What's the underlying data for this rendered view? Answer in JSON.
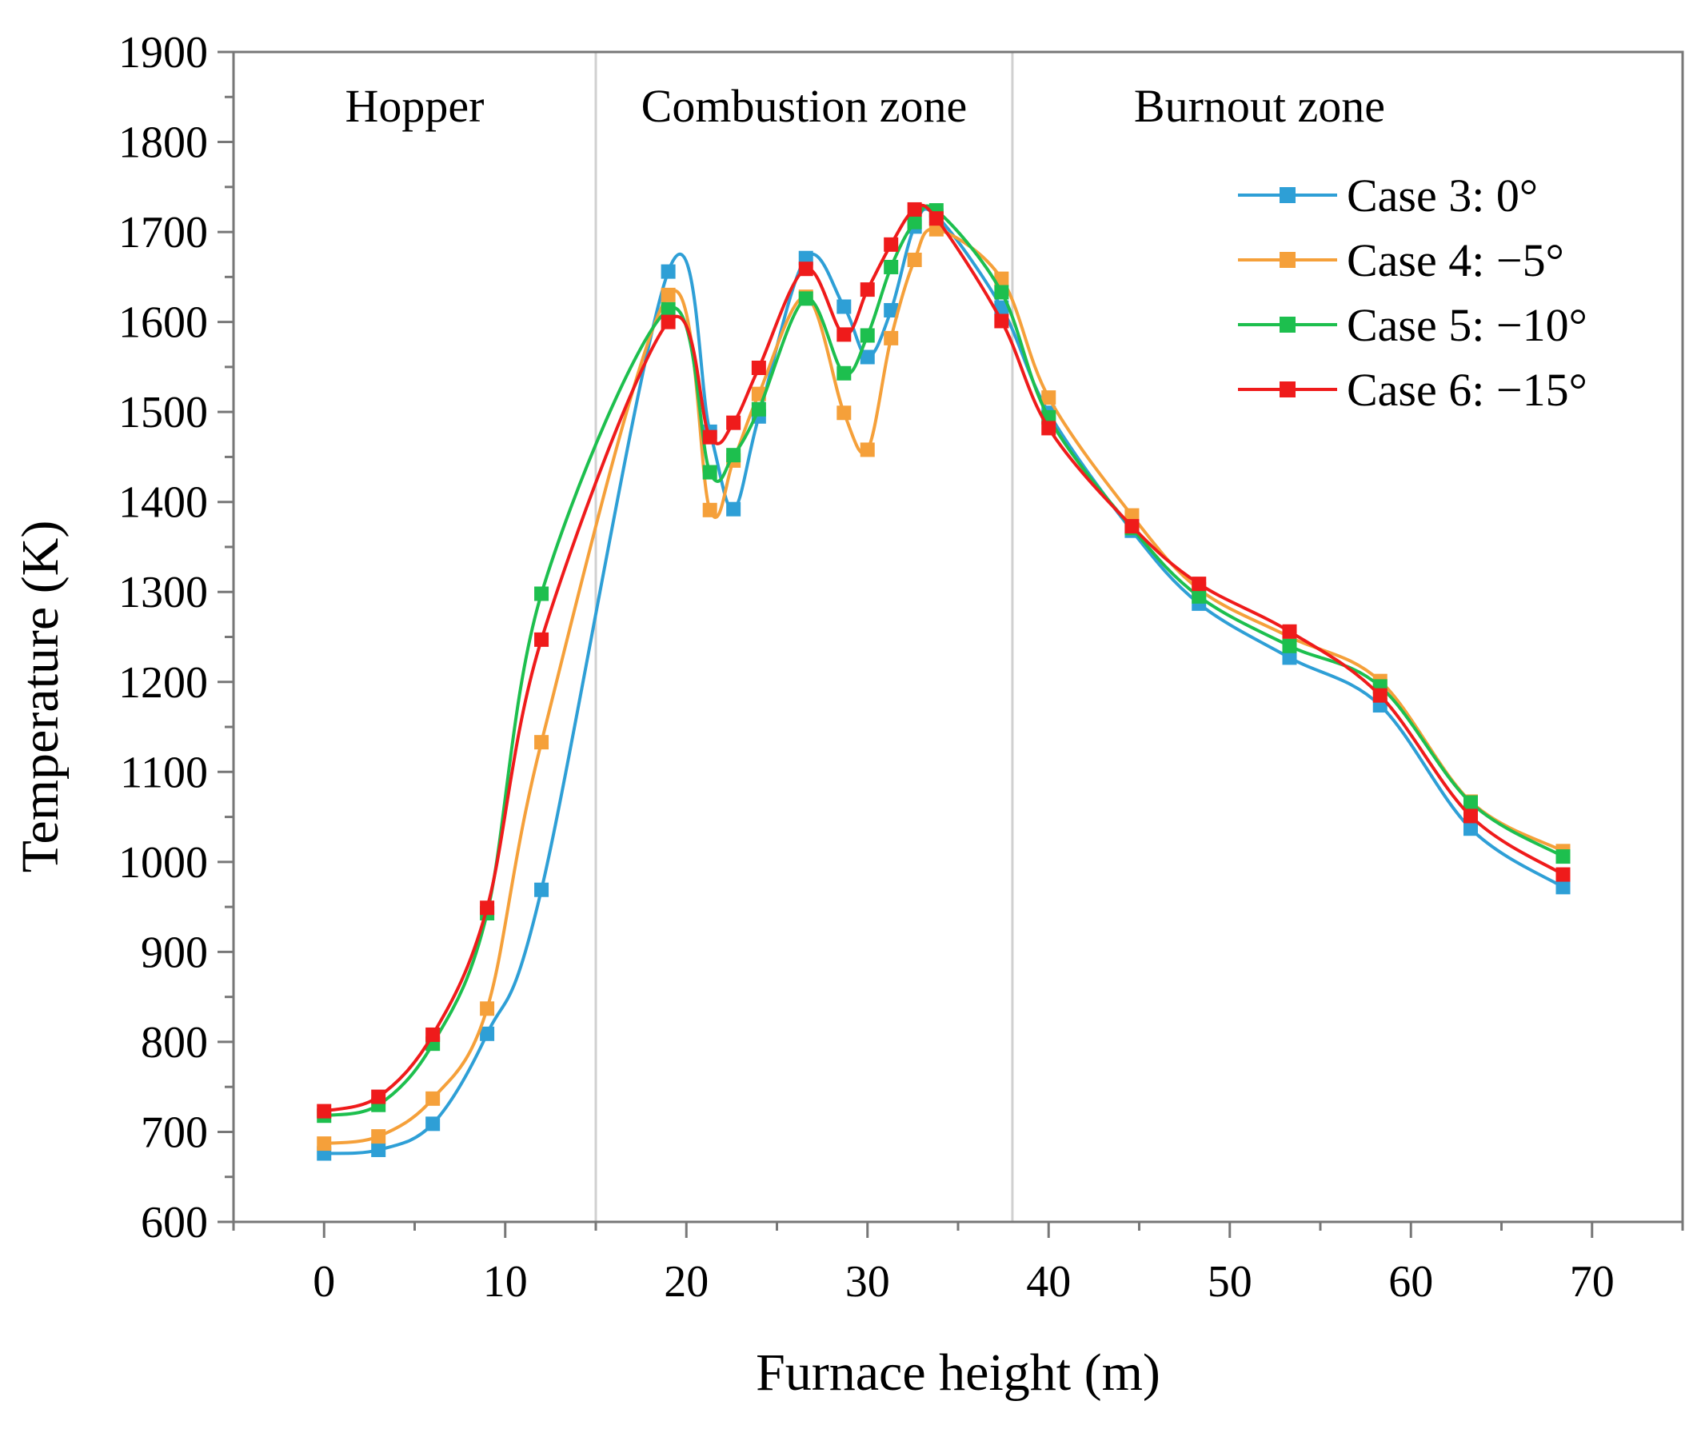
{
  "chart_data": {
    "type": "line",
    "title": "",
    "xlabel": "Furnace height (m)",
    "ylabel": "Temperature (K)",
    "xlim": [
      -5,
      75
    ],
    "ylim": [
      600,
      1900
    ],
    "xticks": [
      0,
      10,
      20,
      30,
      40,
      50,
      60,
      70
    ],
    "yticks": [
      600,
      700,
      800,
      900,
      1000,
      1100,
      1200,
      1300,
      1400,
      1500,
      1600,
      1700,
      1800,
      1900
    ],
    "grid": false,
    "legend_position": "top-right",
    "zones": [
      {
        "label": "Hopper",
        "from": -5,
        "to": 15
      },
      {
        "label": "Combustion zone",
        "from": 15,
        "to": 38
      },
      {
        "label": "Burnout zone",
        "from": 38,
        "to": 75
      }
    ],
    "zone_boundaries": [
      15,
      38
    ],
    "series": [
      {
        "name": "Case 3: 0°",
        "color": "#2e9fd6",
        "x": [
          0,
          3,
          6,
          9,
          12,
          19,
          21.3,
          22.6,
          24,
          26.6,
          28.7,
          30,
          31.3,
          32.6,
          33.8,
          37.4,
          40,
          44.6,
          48.3,
          53.3,
          58.3,
          63.3,
          68.4
        ],
        "y": [
          676,
          680,
          709,
          809,
          969,
          1656,
          1478,
          1392,
          1495,
          1671,
          1617,
          1561,
          1613,
          1706,
          1718,
          1616,
          1499,
          1368,
          1287,
          1227,
          1174,
          1037,
          972
        ]
      },
      {
        "name": "Case 4: −5°",
        "color": "#f5a03a",
        "x": [
          0,
          3,
          6,
          9,
          12,
          19,
          21.3,
          22.6,
          24,
          26.6,
          28.7,
          30,
          31.3,
          32.6,
          33.8,
          37.4,
          40,
          44.6,
          48.3,
          53.3,
          58.3,
          63.3,
          68.4
        ],
        "y": [
          687,
          695,
          737,
          837,
          1133,
          1630,
          1391,
          1446,
          1520,
          1628,
          1499,
          1458,
          1582,
          1669,
          1703,
          1648,
          1516,
          1385,
          1303,
          1250,
          1201,
          1067,
          1012
        ]
      },
      {
        "name": "Case 5: −10°",
        "color": "#1dbf4e",
        "x": [
          0,
          3,
          6,
          9,
          12,
          19,
          21.3,
          22.6,
          24,
          26.6,
          28.7,
          30,
          31.3,
          32.6,
          33.8,
          37.4,
          40,
          44.6,
          48.3,
          53.3,
          58.3,
          63.3,
          68.4
        ],
        "y": [
          718,
          730,
          798,
          943,
          1298,
          1614,
          1433,
          1452,
          1503,
          1626,
          1543,
          1585,
          1661,
          1711,
          1724,
          1633,
          1494,
          1371,
          1295,
          1240,
          1195,
          1066,
          1006
        ]
      },
      {
        "name": "Case 6: −15°",
        "color": "#ef1b1b",
        "x": [
          0,
          3,
          6,
          9,
          12,
          19,
          21.3,
          22.6,
          24,
          26.6,
          28.7,
          30,
          31.3,
          32.6,
          33.8,
          37.4,
          40,
          44.6,
          48.3,
          53.3,
          58.3,
          63.3,
          68.4
        ],
        "y": [
          723,
          739,
          808,
          949,
          1247,
          1600,
          1472,
          1488,
          1549,
          1659,
          1586,
          1636,
          1686,
          1725,
          1715,
          1601,
          1482,
          1373,
          1309,
          1256,
          1185,
          1051,
          986
        ]
      }
    ]
  }
}
